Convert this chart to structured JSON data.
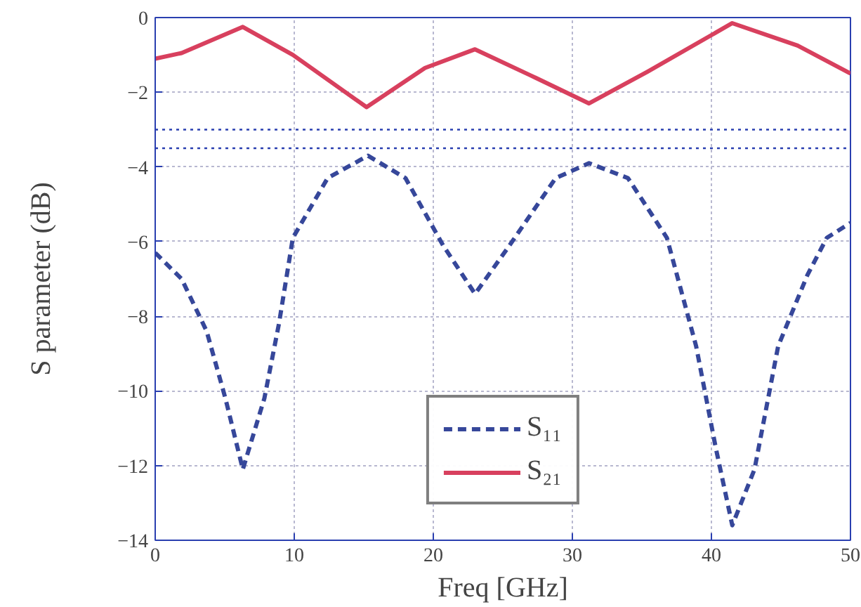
{
  "chart_data": {
    "type": "line",
    "xlabel": "Freq [GHz]",
    "ylabel": "S parameter (dB)",
    "xlim": [
      0,
      50
    ],
    "ylim": [
      -14,
      0
    ],
    "xticks": [
      0,
      10,
      20,
      30,
      40,
      50
    ],
    "yticks": [
      -14,
      -12,
      -10,
      -8,
      -6,
      -4,
      -2,
      0
    ],
    "grid": true,
    "legend": "bottom",
    "marker": "none",
    "series": [
      {
        "name": "S₁₁",
        "color": "#36479a",
        "line_style": "dashed",
        "x": [
          0,
          1.9,
          3.7,
          5.05,
          6.3,
          7.85,
          8.9,
          9.9,
          12.4,
          15.3,
          18.0,
          20.7,
          23.0,
          25.3,
          28.8,
          31.2,
          34.0,
          36.8,
          38.9,
          40.3,
          41.5,
          43.1,
          44.8,
          46.9,
          48.3,
          50
        ],
        "values": [
          -6.3,
          -7.0,
          -8.4,
          -10.2,
          -12.1,
          -10.2,
          -8.2,
          -5.9,
          -4.3,
          -3.7,
          -4.3,
          -6.1,
          -7.4,
          -6.2,
          -4.3,
          -3.9,
          -4.3,
          -5.9,
          -8.8,
          -11.5,
          -13.6,
          -12.1,
          -8.8,
          -6.9,
          -5.9,
          -5.5
        ]
      },
      {
        "name": "S₂₁",
        "color": "#d8405e",
        "line_style": "solid",
        "x": [
          0,
          1.9,
          6.3,
          9.9,
          15.2,
          19.4,
          23.0,
          27.0,
          31.2,
          35.4,
          41.5,
          46.2,
          50
        ],
        "values": [
          -1.1,
          -0.95,
          -0.25,
          -1.0,
          -2.4,
          -1.35,
          -0.85,
          -1.55,
          -2.3,
          -1.45,
          -0.15,
          -0.75,
          -1.5
        ]
      }
    ],
    "ref_lines": [
      {
        "axis": "y",
        "value": -3,
        "color": "#2a3fb0",
        "line_style": "dotted"
      },
      {
        "axis": "y",
        "value": -3.5,
        "color": "#2a3fb0",
        "line_style": "dotted"
      }
    ]
  }
}
